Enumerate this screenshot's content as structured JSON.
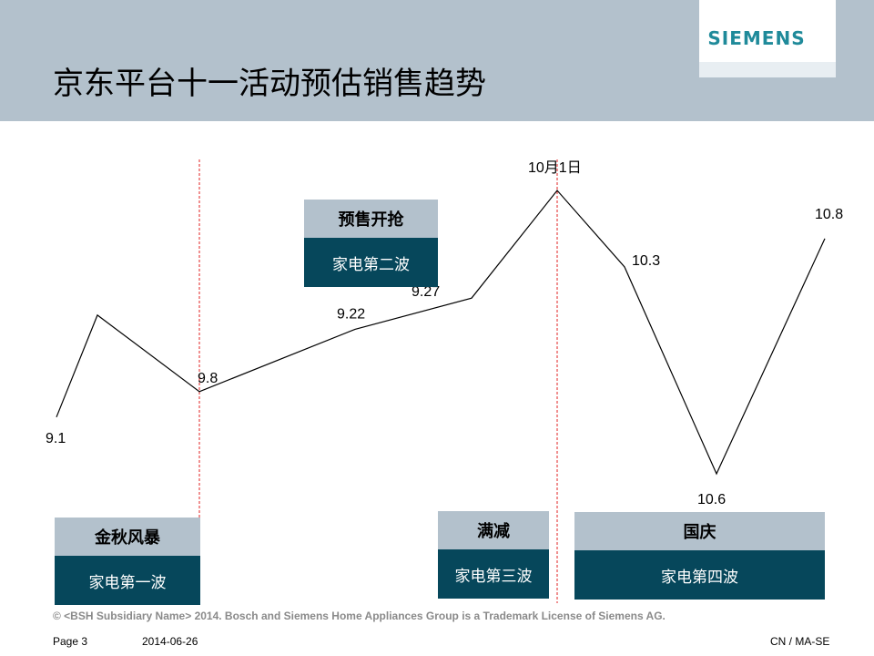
{
  "header": {
    "title": "京东平台十一活动预估销售趋势",
    "logo_text": "SIEMENS"
  },
  "chart_data": {
    "type": "line",
    "x": [
      "9.1",
      "",
      "9.8",
      "9.22",
      "9.27",
      "10月1日",
      "10.3",
      "10.6",
      "10.8"
    ],
    "point_labels": [
      "9.1",
      "",
      "9.8",
      "9.22",
      "9.27",
      "10月1日",
      "10.3",
      "10.6",
      "10.8"
    ],
    "values": [
      0.2,
      0.56,
      0.29,
      0.51,
      0.62,
      1.0,
      0.73,
      0.0,
      0.83
    ],
    "series_color": "#000000",
    "markers": [
      {
        "at": "9.8",
        "style": "dashed",
        "color": "#e02020"
      },
      {
        "at": "10月1日",
        "style": "dashed",
        "color": "#e02020"
      }
    ],
    "title": "",
    "xlabel": "",
    "ylabel": "",
    "grid": false
  },
  "boxes": [
    {
      "heading": "金秋风暴",
      "subtitle": "家电第一波"
    },
    {
      "heading": "预售开抢",
      "subtitle": "家电第二波"
    },
    {
      "heading": "满减",
      "subtitle": "家电第三波"
    },
    {
      "heading": "国庆",
      "subtitle": "家电第四波"
    }
  ],
  "footer": {
    "copyright": "© <BSH Subsidiary Name> 2014. Bosch and Siemens Home Appliances Group is a Trademark License of Siemens AG.",
    "page": "Page 3",
    "date": "2014-06-26",
    "code": "CN / MA-SE"
  },
  "colors": {
    "header_bg": "#b3c1cc",
    "box_dark": "#06475b",
    "marker_red": "#e02020",
    "logo_teal": "#1f8a9a"
  }
}
